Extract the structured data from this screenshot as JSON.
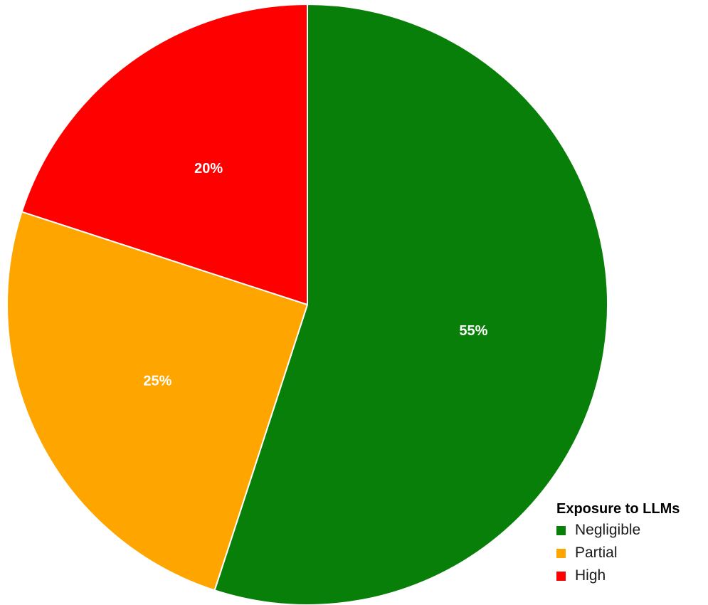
{
  "chart_data": {
    "type": "pie",
    "slices": [
      {
        "label": "Negligible",
        "value": 55,
        "data_label": "55%",
        "color": "#087f08"
      },
      {
        "label": "Partial",
        "value": 25,
        "data_label": "25%",
        "color": "#ffa500"
      },
      {
        "label": "High",
        "value": 20,
        "data_label": "20%",
        "color": "#ff0000"
      }
    ],
    "start": "12 o'clock",
    "direction": "clockwise",
    "slice_border_color": "#ffffff",
    "data_label_color": "#ffffff",
    "legend": {
      "title": "Exposure to LLMs",
      "position": "bottom-right"
    }
  }
}
